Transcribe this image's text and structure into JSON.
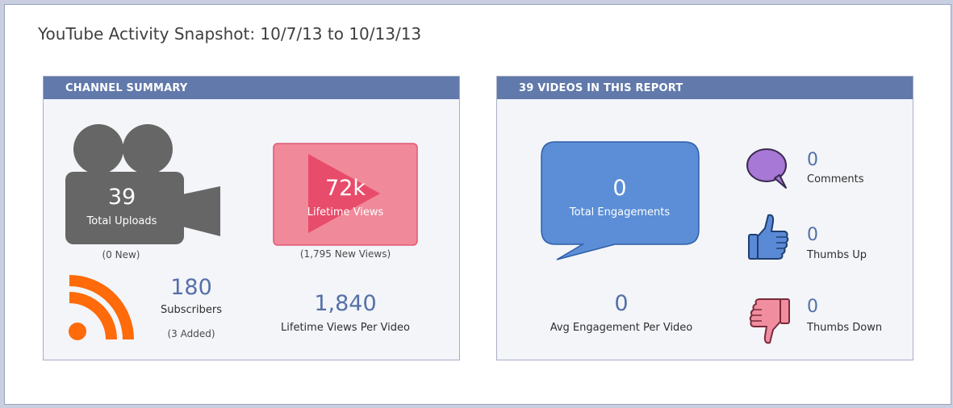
{
  "page": {
    "title": "YouTube Activity Snapshot: 10/7/13 to 10/13/13"
  },
  "channel": {
    "header": "CHANNEL SUMMARY",
    "uploads": {
      "value": "39",
      "label": "Total Uploads",
      "note": "(0 New)"
    },
    "views": {
      "value": "72k",
      "label": "Lifetime Views",
      "note": "(1,795 New Views)"
    },
    "subscribers": {
      "value": "180",
      "label": "Subscribers",
      "note": "(3 Added)"
    },
    "views_per_video": {
      "value": "1,840",
      "label": "Lifetime Views Per Video"
    }
  },
  "videos": {
    "header": "39 VIDEOS IN THIS REPORT",
    "engagements": {
      "value": "0",
      "label": "Total Engagements"
    },
    "avg_engagement": {
      "value": "0",
      "label": "Avg Engagement Per Video"
    },
    "comments": {
      "value": "0",
      "label": "Comments"
    },
    "thumbs_up": {
      "value": "0",
      "label": "Thumbs Up"
    },
    "thumbs_down": {
      "value": "0",
      "label": "Thumbs Down"
    }
  },
  "colors": {
    "header_bg": "#6179ab",
    "camera": "#666666",
    "play_bg": "#f0899a",
    "play_icon": "#e84c6b",
    "rss": "#ff6a0a",
    "speech": "#5b8ed6",
    "comment_bubble": "#a878d6",
    "thumb_up": "#5a8ad6",
    "thumb_down": "#f08ea0"
  },
  "icons": [
    "video-camera-icon",
    "play-icon",
    "rss-icon",
    "speech-bubble-icon",
    "comment-icon",
    "thumbs-up-icon",
    "thumbs-down-icon"
  ]
}
